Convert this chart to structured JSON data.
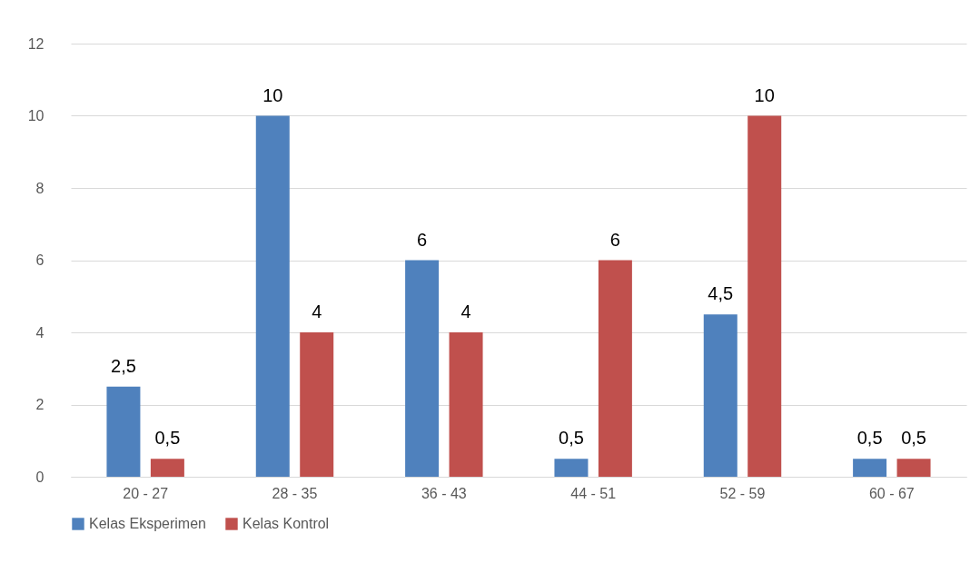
{
  "chart_data": {
    "type": "bar",
    "categories": [
      "20 - 27",
      "28 - 35",
      "36 - 43",
      "44 - 51",
      "52 - 59",
      "60 - 67"
    ],
    "series": [
      {
        "name": "Kelas Eksperimen",
        "color": "#4f81bd",
        "values": [
          2.5,
          10,
          6,
          0.5,
          4.5,
          0.5
        ],
        "value_labels": [
          "2,5",
          "10",
          "6",
          "0,5",
          "4,5",
          "0,5"
        ]
      },
      {
        "name": "Kelas Kontrol",
        "color": "#c0504d",
        "values": [
          0.5,
          4,
          4,
          6,
          10,
          0.5
        ],
        "value_labels": [
          "0,5",
          "4",
          "4",
          "6",
          "10",
          "0,5"
        ]
      }
    ],
    "ylim": [
      0,
      12
    ],
    "yticks": [
      0,
      2,
      4,
      6,
      8,
      10,
      12
    ],
    "grid": "y",
    "legend": "bottom"
  }
}
